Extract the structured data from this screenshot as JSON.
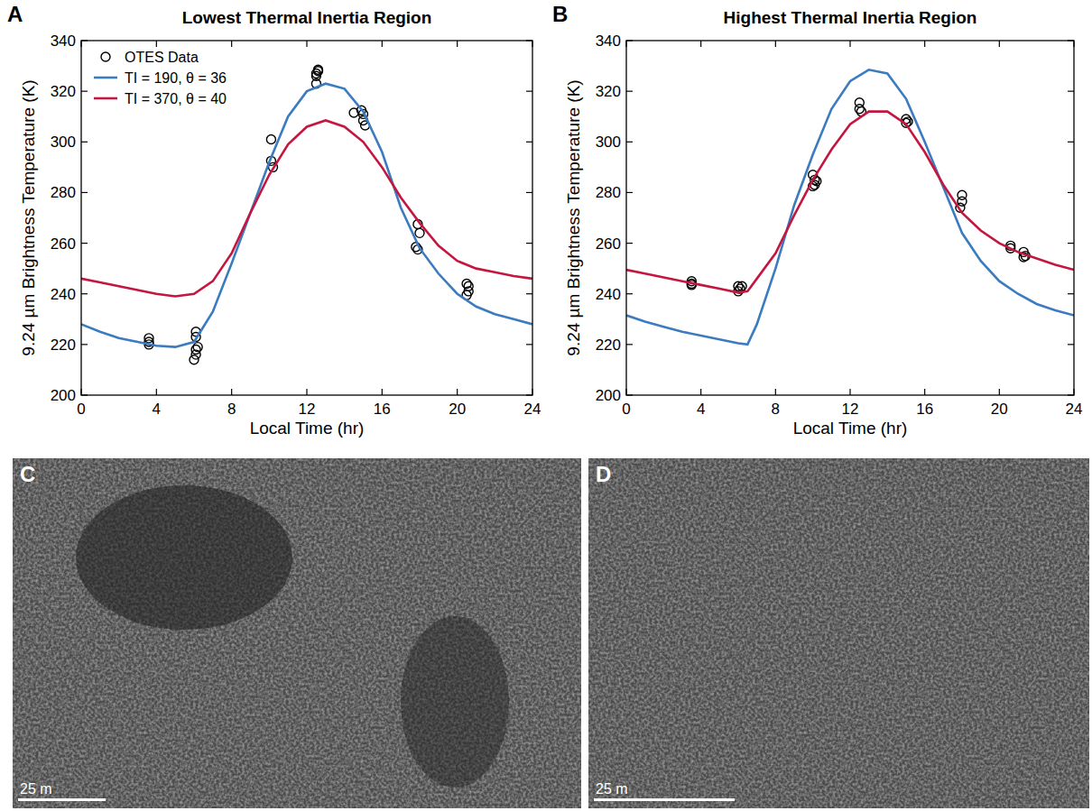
{
  "chart_data": [
    {
      "type": "line",
      "panel_label": "A",
      "title": "Lowest Thermal Inertia Region",
      "x_label": "Local Time (hr)",
      "y_label": "9.24 µm Brightness Temperature (K)",
      "xlim": [
        0,
        24
      ],
      "xticks": [
        0,
        4,
        8,
        12,
        16,
        20,
        24
      ],
      "ylim": [
        200,
        340
      ],
      "yticks": [
        200,
        220,
        240,
        260,
        280,
        300,
        320,
        340
      ],
      "legend": "upper left",
      "grid": false,
      "series": [
        {
          "name": "OTES Data",
          "type": "scatter",
          "marker": "open_circle",
          "color": "#000000",
          "x": [
            3.6,
            3.6,
            3.6,
            6.1,
            6.1,
            6.2,
            6.1,
            6.1,
            6.0,
            10.1,
            10.1,
            10.2,
            12.5,
            12.5,
            12.6,
            12.6,
            12.5,
            14.5,
            14.9,
            15.0,
            15.0,
            15.1,
            17.9,
            18.0,
            17.8,
            17.9,
            20.5,
            20.6,
            20.5,
            20.6
          ],
          "values": [
            222.5,
            221,
            220,
            225,
            223,
            219,
            218,
            216,
            214,
            301,
            292.5,
            290,
            323,
            327,
            328,
            328.5,
            326,
            311.5,
            312.5,
            311,
            308.5,
            306.5,
            267.5,
            264,
            258.5,
            257.5,
            244,
            241,
            239.5,
            243
          ]
        },
        {
          "name": "TI = 190, θ = 36",
          "type": "line",
          "line_style": "solid",
          "color": "#3b7bbf",
          "x": [
            0,
            1,
            2,
            3,
            4,
            5,
            6,
            7,
            8,
            9,
            10,
            11,
            12,
            13,
            14,
            15,
            16,
            17,
            18,
            19,
            20,
            21,
            22,
            23,
            24
          ],
          "values": [
            228,
            225,
            222.5,
            221,
            219.5,
            219,
            221,
            233,
            252,
            272,
            292,
            310,
            320,
            323,
            321,
            312,
            296,
            274,
            258,
            248,
            240,
            235,
            232,
            230,
            228
          ]
        },
        {
          "name": "TI = 370, θ = 40",
          "type": "line",
          "line_style": "solid",
          "color": "#c4163f",
          "x": [
            0,
            1,
            2,
            3,
            4,
            5,
            6,
            7,
            8,
            9,
            10,
            11,
            12,
            13,
            14,
            15,
            16,
            17,
            18,
            19,
            20,
            21,
            22,
            23,
            24
          ],
          "values": [
            246,
            244.5,
            243,
            241.5,
            240,
            239,
            240,
            245,
            256,
            272,
            287,
            299,
            306,
            308.5,
            306,
            300,
            290,
            278,
            268,
            259,
            253,
            250,
            248.5,
            247,
            246
          ]
        }
      ]
    },
    {
      "type": "line",
      "panel_label": "B",
      "title": "Highest Thermal Inertia Region",
      "x_label": "Local Time (hr)",
      "y_label": "9.24 µm Brightness Temperature (K)",
      "xlim": [
        0,
        24
      ],
      "xticks": [
        0,
        4,
        8,
        12,
        16,
        20,
        24
      ],
      "ylim": [
        200,
        340
      ],
      "yticks": [
        200,
        220,
        240,
        260,
        280,
        300,
        320,
        340
      ],
      "legend": "none",
      "grid": false,
      "series": [
        {
          "type": "scatter",
          "marker": "open_circle",
          "color": "#000000",
          "x": [
            3.5,
            3.5,
            3.5,
            6.0,
            6.1,
            6.0,
            6.2,
            10.0,
            10.1,
            10.1,
            10.0,
            10.2,
            12.5,
            12.5,
            12.6,
            15.0,
            15.0,
            15.1,
            18.0,
            18.0,
            17.9,
            20.6,
            20.6,
            21.3,
            21.4,
            21.3
          ],
          "values": [
            245,
            243.5,
            244,
            243,
            242,
            241,
            243,
            287,
            285,
            283,
            282.5,
            284.5,
            315.5,
            313,
            312,
            309,
            307.5,
            308,
            279,
            276.5,
            274,
            259,
            258,
            256.5,
            255,
            254.5
          ]
        },
        {
          "type": "line",
          "line_style": "solid",
          "color": "#3b7bbf",
          "x": [
            0,
            1,
            2,
            3,
            4,
            5,
            6,
            6.5,
            7,
            8,
            9,
            10,
            11,
            12,
            13,
            14,
            15,
            16,
            17,
            18,
            19,
            20,
            21,
            22,
            23,
            24
          ],
          "values": [
            231.5,
            229,
            227,
            225,
            223.5,
            222,
            220.5,
            220,
            228,
            250,
            275,
            295,
            313,
            324,
            328.5,
            327,
            317,
            300,
            282,
            264,
            253,
            245,
            240,
            236,
            233.5,
            231.5
          ]
        },
        {
          "type": "line",
          "line_style": "solid",
          "color": "#c4163f",
          "x": [
            0,
            1,
            2,
            3,
            4,
            5,
            6,
            6.5,
            7,
            8,
            9,
            10,
            11,
            12,
            13,
            14,
            15,
            16,
            17,
            18,
            19,
            20,
            21,
            22,
            23,
            24
          ],
          "values": [
            249.5,
            248,
            246.5,
            245,
            243.5,
            242,
            240.5,
            241,
            246,
            256,
            271,
            285,
            297,
            307,
            312,
            312,
            307,
            296,
            283,
            272,
            265,
            260,
            256.5,
            254,
            251.5,
            249.5
          ]
        }
      ]
    }
  ],
  "images": [
    {
      "panel_label": "C",
      "scale_label": "25 m"
    },
    {
      "panel_label": "D",
      "scale_label": "25 m"
    }
  ]
}
